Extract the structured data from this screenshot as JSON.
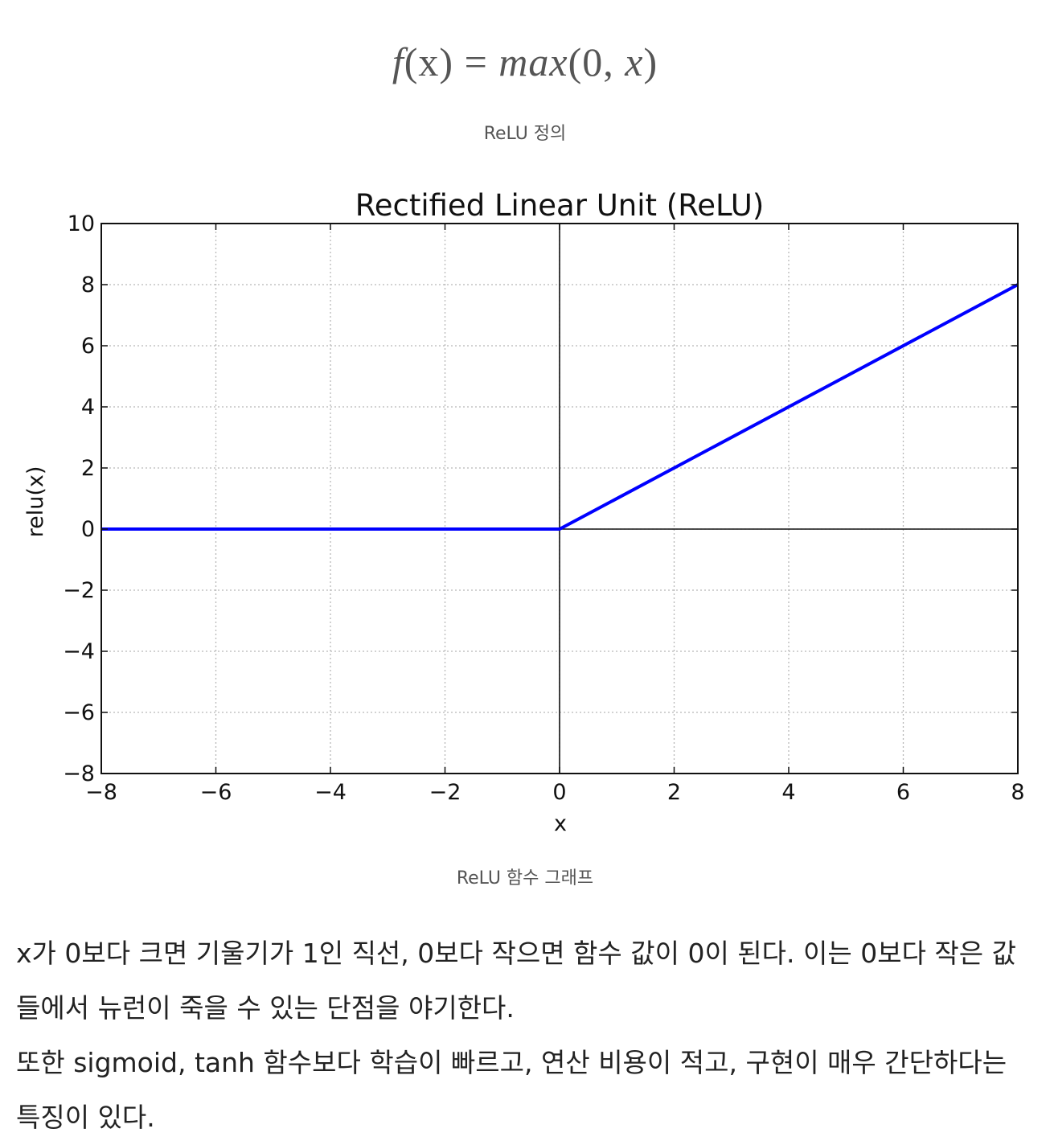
{
  "formula": {
    "lhs_f": "f",
    "lhs_args": "(x)",
    "eq": "=",
    "rhs_fn": "max",
    "rhs_args_open": "(0, ",
    "rhs_x": "x",
    "rhs_close": ")"
  },
  "captions": {
    "definition": "ReLU 정의",
    "graph": "ReLU 함수 그래프"
  },
  "chart_data": {
    "type": "line",
    "title": "Rectified Linear Unit (ReLU)",
    "xlabel": "x",
    "ylabel": "relu(x)",
    "xlim": [
      -8,
      8
    ],
    "ylim": [
      -8,
      10
    ],
    "xticks": [
      -8,
      -6,
      -4,
      -2,
      0,
      2,
      4,
      6,
      8
    ],
    "yticks": [
      -8,
      -6,
      -4,
      -2,
      0,
      2,
      4,
      6,
      8,
      10
    ],
    "xtick_labels": [
      "−8",
      "−6",
      "−4",
      "−2",
      "0",
      "2",
      "4",
      "6",
      "8"
    ],
    "ytick_labels": [
      "−8",
      "−6",
      "−4",
      "−2",
      "0",
      "2",
      "4",
      "6",
      "8",
      "10"
    ],
    "grid": true,
    "series": [
      {
        "x": [
          -8,
          0,
          8
        ],
        "y": [
          0,
          0,
          8
        ],
        "color": "#0000ff"
      }
    ]
  },
  "paragraphs": [
    "x가 0보다 크면 기울기가 1인 직선, 0보다 작으면 함수 값이 0이 된다. 이는 0보다 작은 값들에서 뉴런이 죽을 수 있는 단점을 야기한다.",
    "또한 sigmoid, tanh 함수보다 학습이 빠르고, 연산 비용이 적고, 구현이 매우 간단하다는 특징이 있다."
  ]
}
